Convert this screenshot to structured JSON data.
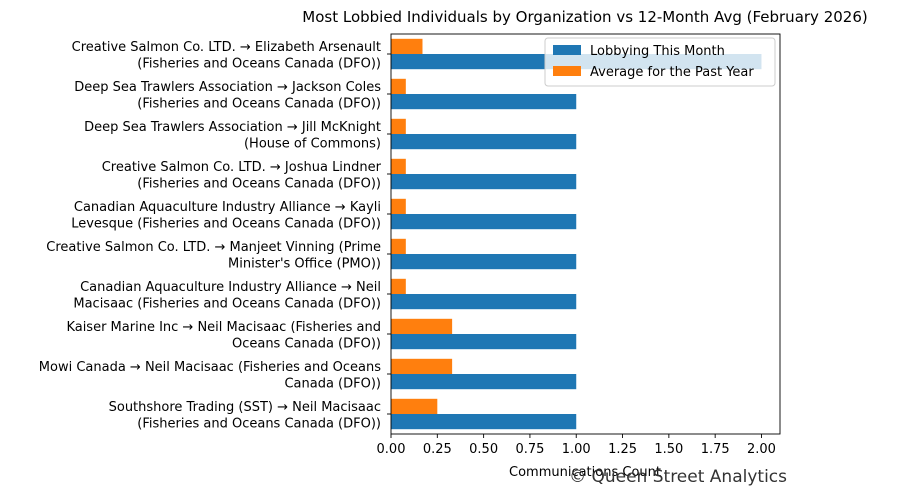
{
  "chart_data": {
    "type": "bar",
    "orientation": "horizontal",
    "title": "Most Lobbied Individuals by Organization vs 12-Month Avg (February 2026)",
    "xlabel": "Communications Count",
    "ylabel": "",
    "xlim": [
      0,
      2.1
    ],
    "xticks": [
      "0.00",
      "0.25",
      "0.50",
      "0.75",
      "1.00",
      "1.25",
      "1.50",
      "1.75",
      "2.00"
    ],
    "grid": false,
    "legend_position": "top-right",
    "categories": [
      [
        "Creative Salmon Co. LTD. → Elizabeth Arsenault",
        "(Fisheries and Oceans Canada (DFO))"
      ],
      [
        "Deep Sea Trawlers Association → Jackson Coles",
        "(Fisheries and Oceans Canada (DFO))"
      ],
      [
        "Deep Sea Trawlers Association → Jill McKnight",
        "(House of Commons)"
      ],
      [
        "Creative Salmon Co. LTD. → Joshua Lindner",
        "(Fisheries and Oceans Canada (DFO))"
      ],
      [
        "Canadian Aquaculture Industry Alliance → Kayli",
        "Levesque (Fisheries and Oceans Canada (DFO))"
      ],
      [
        "Creative Salmon Co. LTD. → Manjeet Vinning (Prime",
        "Minister's Office (PMO))"
      ],
      [
        "Canadian Aquaculture Industry Alliance → Neil",
        "Macisaac (Fisheries and Oceans Canada (DFO))"
      ],
      [
        "Kaiser Marine Inc → Neil Macisaac (Fisheries and",
        "Oceans Canada (DFO))"
      ],
      [
        "Mowi Canada → Neil Macisaac (Fisheries and Oceans",
        "Canada (DFO))"
      ],
      [
        "Southshore Trading (SST) → Neil Macisaac",
        "(Fisheries and Oceans Canada (DFO))"
      ]
    ],
    "series": [
      {
        "name": "Lobbying This Month",
        "color": "#1f77b4",
        "values": [
          2,
          1,
          1,
          1,
          1,
          1,
          1,
          1,
          1,
          1
        ]
      },
      {
        "name": "Average for the Past Year",
        "color": "#ff7f0e",
        "values": [
          0.17,
          0.08,
          0.08,
          0.08,
          0.08,
          0.08,
          0.08,
          0.33,
          0.33,
          0.25
        ]
      }
    ],
    "watermark": "© Queen Street Analytics"
  }
}
